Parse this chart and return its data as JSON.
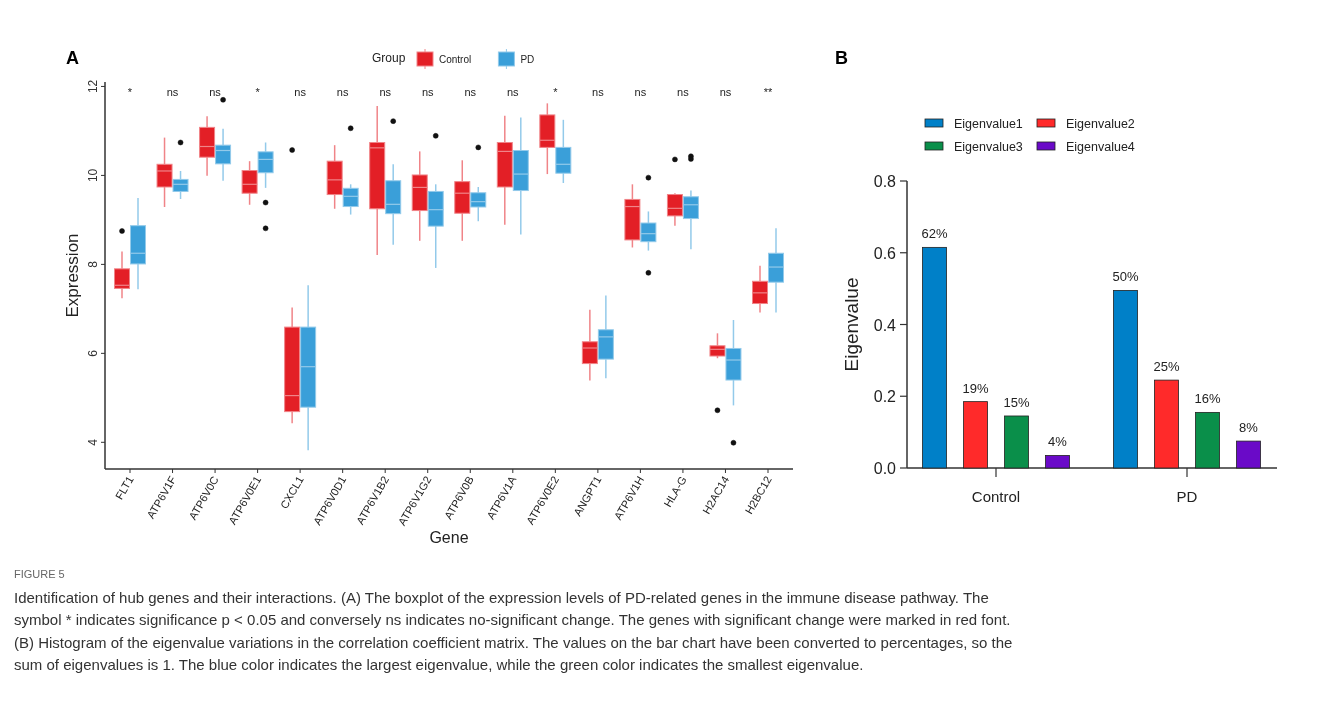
{
  "chart_data": [
    {
      "type": "box",
      "title": "A",
      "xlabel": "Gene",
      "ylabel": "Expression",
      "legend_title": "Group",
      "legend": "top",
      "categories": [
        "FLT1",
        "ATP6V1F",
        "ATP6V0C",
        "ATP6V0E1",
        "CXCL1",
        "ATP6V0D1",
        "ATP6V1B2",
        "ATP6V1G2",
        "ATP6V0B",
        "ATP6V1A",
        "ATP6V0E2",
        "ANGPT1",
        "ATP6V1H",
        "HLA-G",
        "H2AC14",
        "H2BC12"
      ],
      "ylim": [
        3.4,
        12.1
      ],
      "yticks": [
        4,
        6,
        8,
        10,
        12
      ],
      "series": [
        {
          "name": "Control",
          "color": "#e31f26",
          "boxes": [
            {
              "low": 7.24,
              "q1": 7.46,
              "median": 7.53,
              "q3": 7.9,
              "high": 8.29,
              "outliers": [
                8.75
              ]
            },
            {
              "low": 9.29,
              "q1": 9.74,
              "median": 10.1,
              "q3": 10.25,
              "high": 10.85
            },
            {
              "low": 9.99,
              "q1": 10.41,
              "median": 10.65,
              "q3": 11.08,
              "high": 11.33
            },
            {
              "low": 9.34,
              "q1": 9.6,
              "median": 9.8,
              "q3": 10.11,
              "high": 10.32
            },
            {
              "low": 4.43,
              "q1": 4.69,
              "median": 5.05,
              "q3": 6.59,
              "high": 7.03,
              "outliers": [
                10.57
              ]
            },
            {
              "low": 9.25,
              "q1": 9.57,
              "median": 9.9,
              "q3": 10.32,
              "high": 10.68
            },
            {
              "low": 8.21,
              "q1": 9.25,
              "median": 10.62,
              "q3": 10.74,
              "high": 11.56
            },
            {
              "low": 8.53,
              "q1": 9.21,
              "median": 9.73,
              "q3": 10.01,
              "high": 10.54
            },
            {
              "low": 8.53,
              "q1": 9.15,
              "median": 9.6,
              "q3": 9.86,
              "high": 10.34
            },
            {
              "low": 8.89,
              "q1": 9.74,
              "median": 10.54,
              "q3": 10.74,
              "high": 11.34
            },
            {
              "low": 10.03,
              "q1": 10.63,
              "median": 10.79,
              "q3": 11.36,
              "high": 11.62
            },
            {
              "low": 5.39,
              "q1": 5.77,
              "median": 6.12,
              "q3": 6.26,
              "high": 6.98
            },
            {
              "low": 8.38,
              "q1": 8.55,
              "median": 9.3,
              "q3": 9.46,
              "high": 9.8
            },
            {
              "low": 8.87,
              "q1": 9.09,
              "median": 9.26,
              "q3": 9.57,
              "high": 9.6,
              "outliers": [
                10.36
              ]
            },
            {
              "low": 5.89,
              "q1": 5.94,
              "median": 6.09,
              "q3": 6.17,
              "high": 6.45,
              "outliers": [
                4.72
              ]
            },
            {
              "low": 6.92,
              "q1": 7.12,
              "median": 7.36,
              "q3": 7.62,
              "high": 7.97
            }
          ]
        },
        {
          "name": "PD",
          "color": "#3a9fd9",
          "boxes": [
            {
              "low": 7.44,
              "q1": 8.01,
              "median": 8.25,
              "q3": 8.87,
              "high": 9.49
            },
            {
              "low": 9.47,
              "q1": 9.64,
              "median": 9.8,
              "q3": 9.91,
              "high": 10.1,
              "outliers": [
                10.74
              ]
            },
            {
              "low": 9.88,
              "q1": 10.26,
              "median": 10.56,
              "q3": 10.68,
              "high": 11.05,
              "outliers": [
                11.7
              ]
            },
            {
              "low": 9.72,
              "q1": 10.06,
              "median": 10.36,
              "q3": 10.53,
              "high": 10.74,
              "outliers": [
                9.39,
                8.81
              ]
            },
            {
              "low": 3.82,
              "q1": 4.79,
              "median": 5.7,
              "q3": 6.59,
              "high": 7.53
            },
            {
              "low": 9.12,
              "q1": 9.3,
              "median": 9.53,
              "q3": 9.71,
              "high": 9.8,
              "outliers": [
                11.06
              ]
            },
            {
              "low": 8.44,
              "q1": 9.14,
              "median": 9.35,
              "q3": 9.88,
              "high": 10.25,
              "outliers": [
                11.22
              ]
            },
            {
              "low": 7.92,
              "q1": 8.86,
              "median": 9.23,
              "q3": 9.64,
              "high": 9.8,
              "outliers": [
                10.89
              ]
            },
            {
              "low": 8.97,
              "q1": 9.29,
              "median": 9.41,
              "q3": 9.61,
              "high": 9.74,
              "outliers": [
                10.63
              ]
            },
            {
              "low": 8.67,
              "q1": 9.66,
              "median": 10.03,
              "q3": 10.56,
              "high": 11.3
            },
            {
              "low": 9.83,
              "q1": 10.05,
              "median": 10.25,
              "q3": 10.63,
              "high": 11.25
            },
            {
              "low": 5.44,
              "q1": 5.87,
              "median": 6.37,
              "q3": 6.53,
              "high": 7.3
            },
            {
              "low": 8.31,
              "q1": 8.51,
              "median": 8.69,
              "q3": 8.93,
              "high": 9.19,
              "outliers": [
                9.95,
                7.81
              ]
            },
            {
              "low": 8.34,
              "q1": 9.03,
              "median": 9.34,
              "q3": 9.52,
              "high": 9.66,
              "outliers": [
                10.43,
                10.37
              ]
            },
            {
              "low": 4.83,
              "q1": 5.4,
              "median": 5.85,
              "q3": 6.11,
              "high": 6.75,
              "outliers": [
                3.99
              ]
            },
            {
              "low": 6.92,
              "q1": 7.6,
              "median": 7.94,
              "q3": 8.25,
              "high": 8.81
            }
          ]
        }
      ],
      "annotations": [
        "*",
        "ns",
        "ns",
        "*",
        "ns",
        "ns",
        "ns",
        "ns",
        "ns",
        "ns",
        "*",
        "ns",
        "ns",
        "ns",
        "ns",
        "**"
      ]
    },
    {
      "type": "bar",
      "title": "B",
      "ylabel": "Eigenvalue",
      "legend": "top",
      "categories": [
        "Control",
        "PD"
      ],
      "annotations": [
        "FIGURE 5",
        "Identification of hub genes and their interactions. (A) The boxplot of the expression levels of PD-related genes in the immune disease pathway. The",
        "symbol * indicates significance p < 0.05 and conversely ns indicates no-significant change. The genes with significant change were marked in red font.",
        "(B) Histogram of the eigenvalue variations in the correlation coefficient matrix. The values on the bar chart have been converted to percentages, so the",
        "sum of eigenvalues is 1. The blue color indicates the largest eigenvalue, while the green color indicates the smallest eigenvalue."
      ],
      "ylim": [
        0,
        0.8
      ],
      "yticks": [
        {
          "value": 0,
          "label": "0.0"
        },
        {
          "value": 0.2,
          "label": "0.2"
        },
        {
          "value": 0.4,
          "label": "0.4"
        },
        {
          "value": 0.6,
          "label": "0.6"
        },
        {
          "value": 0.8,
          "label": "0.8"
        }
      ],
      "series": [
        {
          "name": "Eigenvalue1",
          "color": "#0080c8",
          "values": [
            0.615,
            0.495
          ],
          "value_labels": [
            "62%",
            "50%"
          ]
        },
        {
          "name": "Eigenvalue2",
          "color": "#ff2a2a",
          "values": [
            0.185,
            0.245
          ],
          "value_labels": [
            "19%",
            "25%"
          ]
        },
        {
          "name": "Eigenvalue3",
          "color": "#0a8f4a",
          "values": [
            0.145,
            0.155
          ],
          "value_labels": [
            "15%",
            "16%"
          ]
        },
        {
          "name": "Eigenvalue4",
          "color": "#6a0ac8",
          "values": [
            0.035,
            0.075
          ],
          "value_labels": [
            "4%",
            "8%"
          ]
        }
      ]
    }
  ]
}
